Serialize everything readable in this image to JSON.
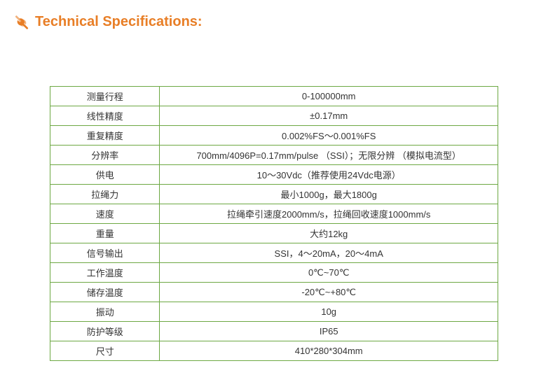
{
  "header": {
    "title": "Technical Specifications:",
    "title_color": "#e87e26",
    "icon_color": "#e87e26"
  },
  "table": {
    "border_color": "#6da843",
    "rows": [
      {
        "label": "测量行程",
        "value": "0-100000mm"
      },
      {
        "label": "线性精度",
        "value": "±0.17mm"
      },
      {
        "label": "重复精度",
        "value": "0.002%FS～0.001%FS"
      },
      {
        "label": "分辨率",
        "value": "700mm/4096P=0.17mm/pulse （SSI）；无限分辨 （模拟电流型）"
      },
      {
        "label": "供电",
        "value": "10～30Vdc（推荐使用24Vdc电源）"
      },
      {
        "label": "拉绳力",
        "value": "最小1000g，最大1800g"
      },
      {
        "label": "速度",
        "value": "拉绳牵引速度2000mm/s，拉绳回收速度1000mm/s"
      },
      {
        "label": "重量",
        "value": "大约12kg"
      },
      {
        "label": "信号输出",
        "value": "SSI，4～20mA，20～4mA"
      },
      {
        "label": "工作温度",
        "value": "0℃~70℃"
      },
      {
        "label": "储存温度",
        "value": "-20℃~+80℃"
      },
      {
        "label": "振动",
        "value": "10g"
      },
      {
        "label": "防护等级",
        "value": "IP65"
      },
      {
        "label": "尺寸",
        "value": "410*280*304mm"
      }
    ]
  }
}
